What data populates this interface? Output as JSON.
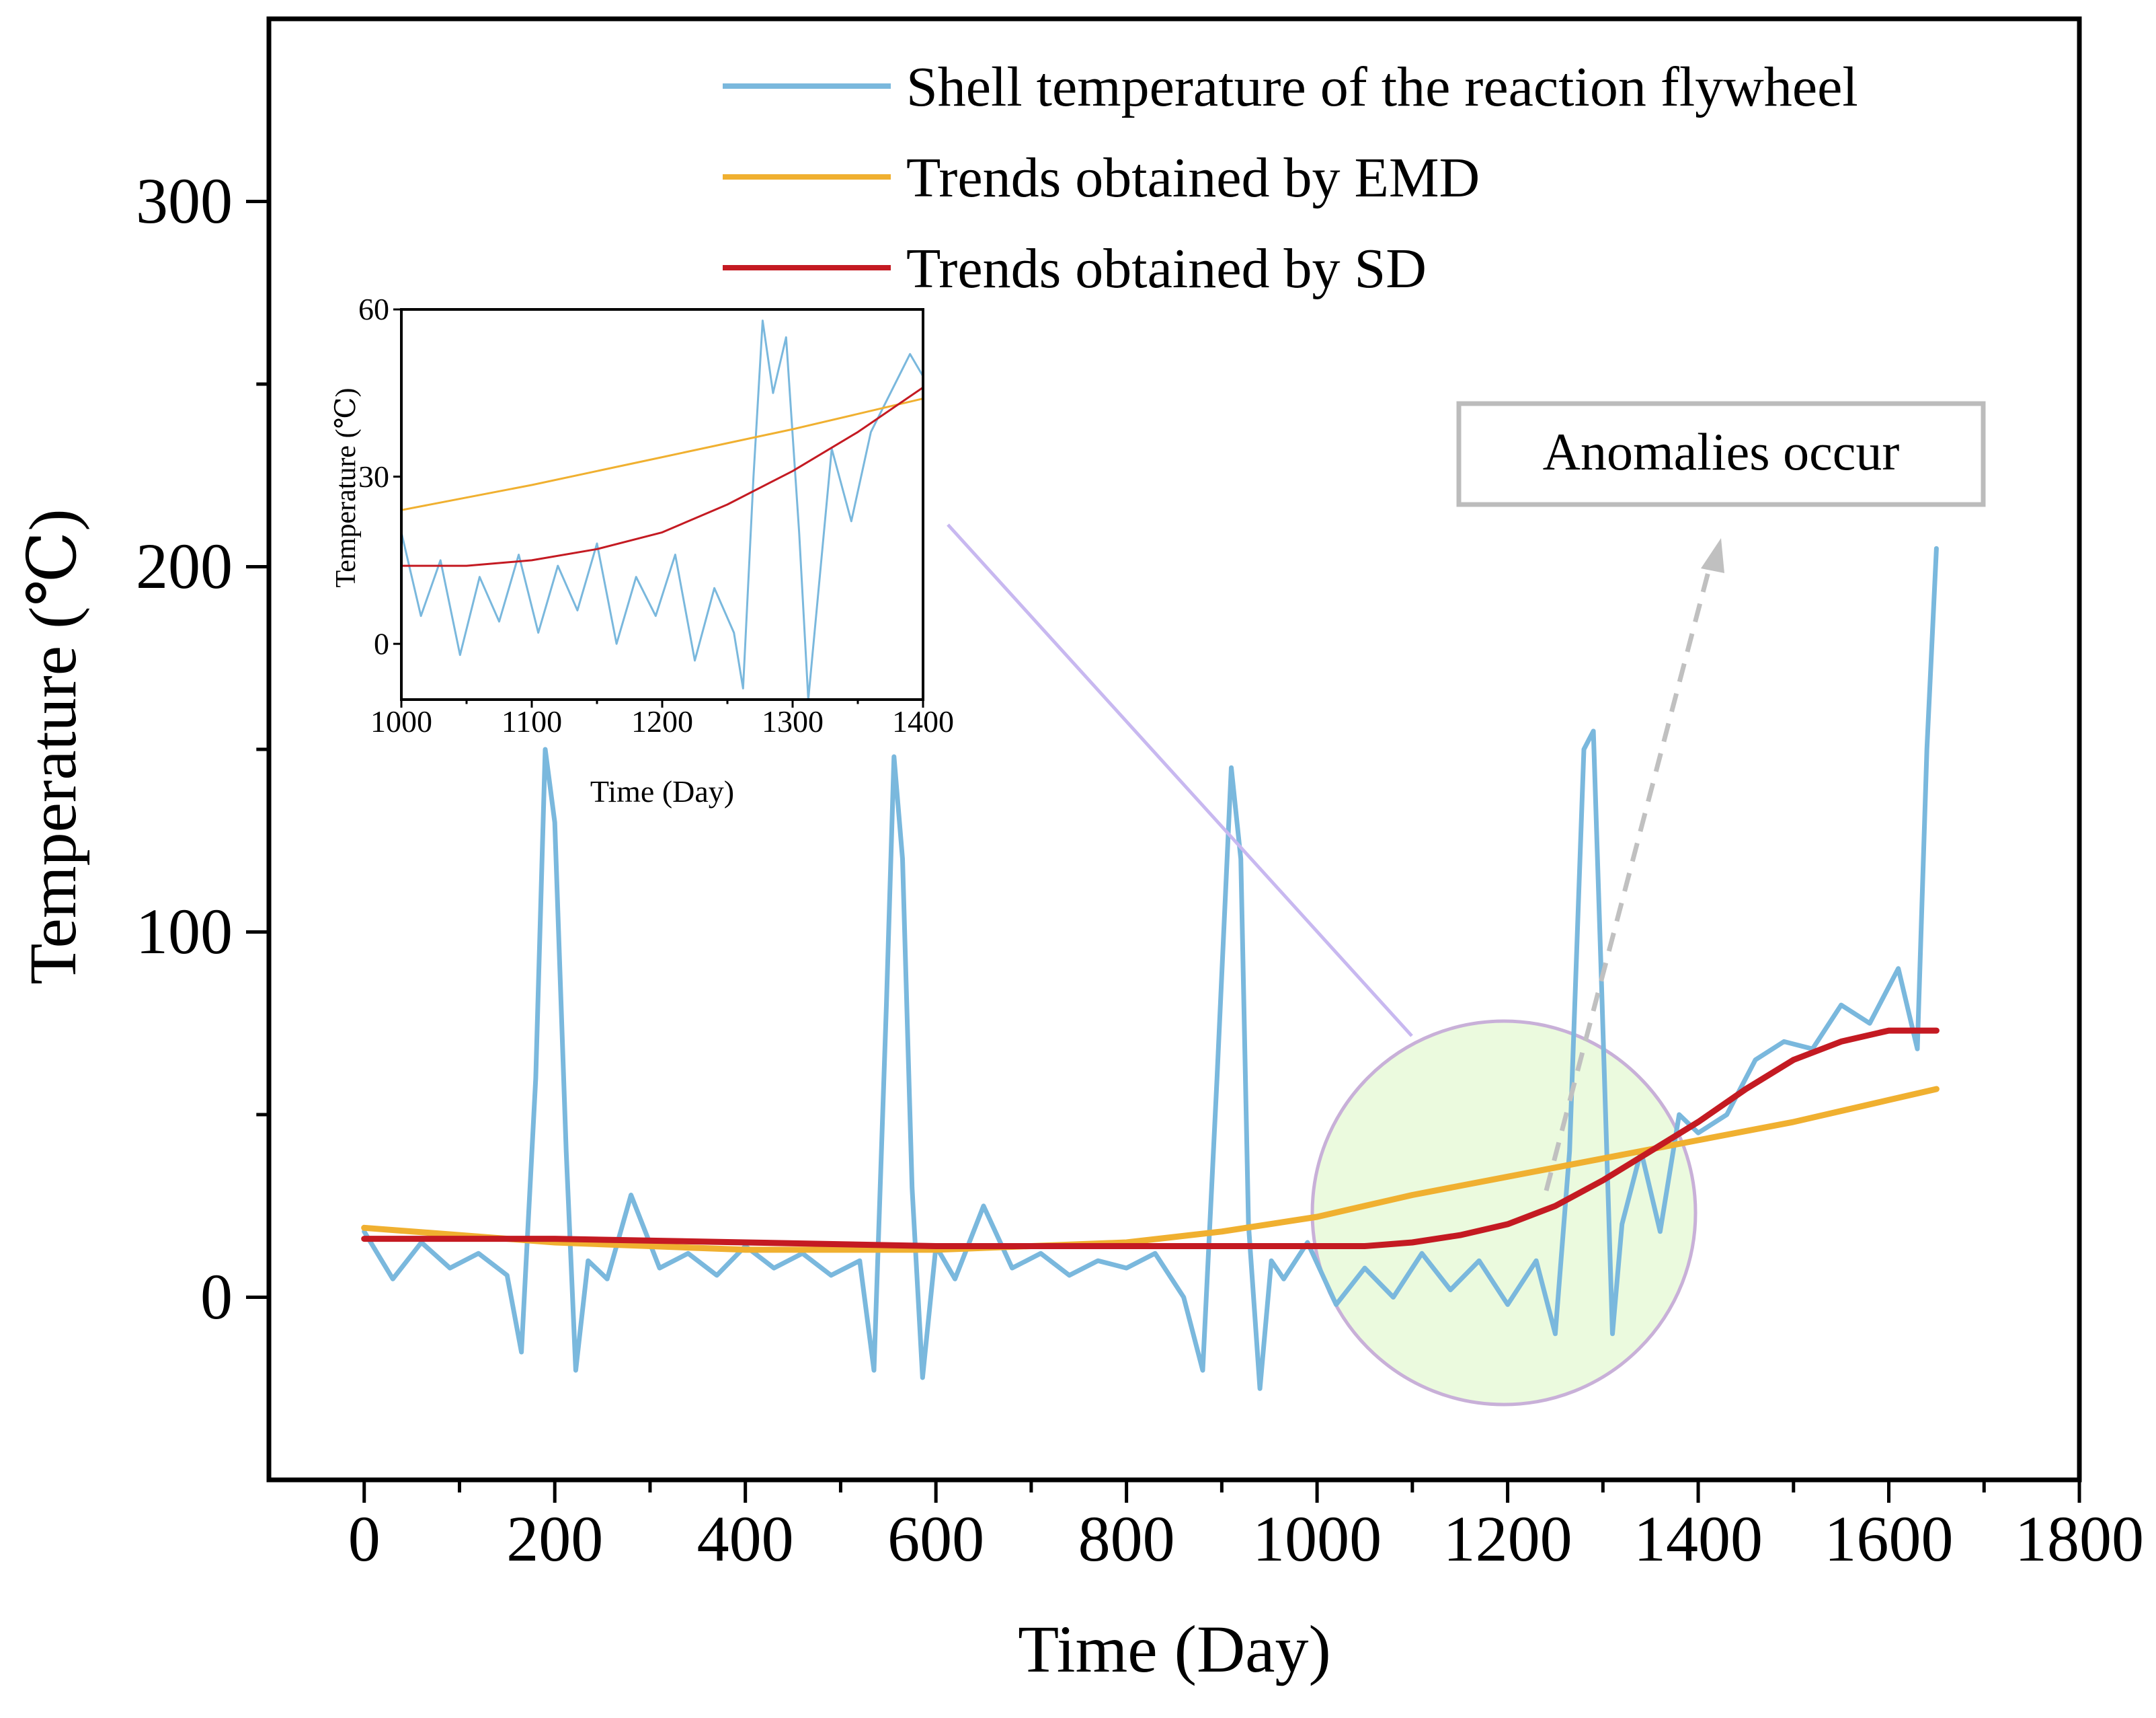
{
  "chart_data": [
    {
      "type": "line",
      "xlabel": "Time (Day)",
      "ylabel": "Temperature (℃)",
      "xlim": [
        -100,
        1800
      ],
      "ylim": [
        -50,
        350
      ],
      "x_ticks": [
        0,
        200,
        400,
        600,
        800,
        1000,
        1200,
        1400,
        1600,
        1800
      ],
      "y_ticks": [
        0,
        100,
        200,
        300
      ],
      "legend_position": "top-right",
      "series": [
        {
          "name": "Shell temperature of the reaction flywheel",
          "color": "#7ab8dd",
          "x": [
            0,
            30,
            60,
            90,
            120,
            150,
            165,
            180,
            190,
            200,
            212,
            222,
            235,
            255,
            280,
            310,
            340,
            370,
            400,
            430,
            460,
            490,
            520,
            535,
            548,
            556,
            565,
            575,
            586,
            600,
            620,
            650,
            680,
            710,
            740,
            770,
            800,
            830,
            860,
            880,
            895,
            910,
            920,
            928,
            940,
            952,
            965,
            990,
            1020,
            1050,
            1080,
            1110,
            1140,
            1170,
            1200,
            1230,
            1250,
            1265,
            1280,
            1290,
            1298,
            1310,
            1320,
            1340,
            1360,
            1380,
            1400,
            1430,
            1460,
            1490,
            1520,
            1550,
            1580,
            1610,
            1630,
            1640,
            1650
          ],
          "values": [
            18,
            5,
            15,
            8,
            12,
            6,
            -15,
            60,
            150,
            130,
            40,
            -20,
            10,
            5,
            28,
            8,
            12,
            6,
            14,
            8,
            12,
            6,
            10,
            -20,
            80,
            148,
            120,
            30,
            -22,
            14,
            5,
            25,
            8,
            12,
            6,
            10,
            8,
            12,
            0,
            -20,
            60,
            145,
            120,
            20,
            -25,
            10,
            5,
            15,
            -2,
            8,
            0,
            12,
            2,
            10,
            -2,
            10,
            -10,
            40,
            150,
            155,
            90,
            -10,
            20,
            40,
            18,
            50,
            45,
            50,
            65,
            70,
            68,
            80,
            75,
            90,
            68,
            150,
            205
          ]
        },
        {
          "name": "Trends obtained by EMD",
          "color": "#f0b030",
          "x": [
            0,
            200,
            400,
            600,
            800,
            900,
            1000,
            1100,
            1200,
            1300,
            1400,
            1500,
            1600,
            1650
          ],
          "values": [
            19,
            15,
            13,
            13,
            15,
            18,
            22,
            28,
            33,
            38,
            43,
            48,
            54,
            57
          ]
        },
        {
          "name": "Trends obtained by SD",
          "color": "#c41a22",
          "x": [
            0,
            200,
            400,
            600,
            800,
            900,
            1000,
            1050,
            1100,
            1150,
            1200,
            1250,
            1300,
            1350,
            1400,
            1450,
            1500,
            1550,
            1600,
            1650
          ],
          "values": [
            16,
            16,
            15,
            14,
            14,
            14,
            14,
            14,
            15,
            17,
            20,
            25,
            32,
            40,
            48,
            57,
            65,
            70,
            73,
            73
          ]
        }
      ],
      "annotation": {
        "text": "Anomalies occur"
      }
    },
    {
      "type": "line",
      "xlabel": "Time (Day)",
      "ylabel": "Temperature (℃)",
      "xlim": [
        1000,
        1400
      ],
      "ylim": [
        -10,
        60
      ],
      "x_ticks": [
        1000,
        1100,
        1200,
        1300,
        1400
      ],
      "y_ticks": [
        0,
        30,
        60
      ],
      "series": [
        {
          "name": "Shell temperature of the reaction flywheel",
          "color": "#7ab8dd",
          "x": [
            1000,
            1015,
            1030,
            1045,
            1060,
            1075,
            1090,
            1105,
            1120,
            1135,
            1150,
            1165,
            1180,
            1195,
            1210,
            1225,
            1240,
            1255,
            1262,
            1270,
            1277,
            1285,
            1295,
            1305,
            1312,
            1320,
            1330,
            1345,
            1360,
            1375,
            1390,
            1400
          ],
          "values": [
            20,
            5,
            15,
            -2,
            12,
            4,
            16,
            2,
            14,
            6,
            18,
            0,
            12,
            5,
            16,
            -3,
            10,
            2,
            -8,
            30,
            58,
            45,
            55,
            20,
            -10,
            10,
            35,
            22,
            38,
            45,
            52,
            48
          ]
        },
        {
          "name": "Trends obtained by EMD",
          "color": "#f0b030",
          "x": [
            1000,
            1100,
            1200,
            1300,
            1400
          ],
          "values": [
            24,
            28.5,
            33.5,
            38.5,
            44
          ]
        },
        {
          "name": "Trends obtained by SD",
          "color": "#c41a22",
          "x": [
            1000,
            1050,
            1100,
            1150,
            1200,
            1250,
            1300,
            1350,
            1400
          ],
          "values": [
            14,
            14,
            15,
            17,
            20,
            25,
            31,
            38,
            46
          ]
        }
      ]
    }
  ]
}
